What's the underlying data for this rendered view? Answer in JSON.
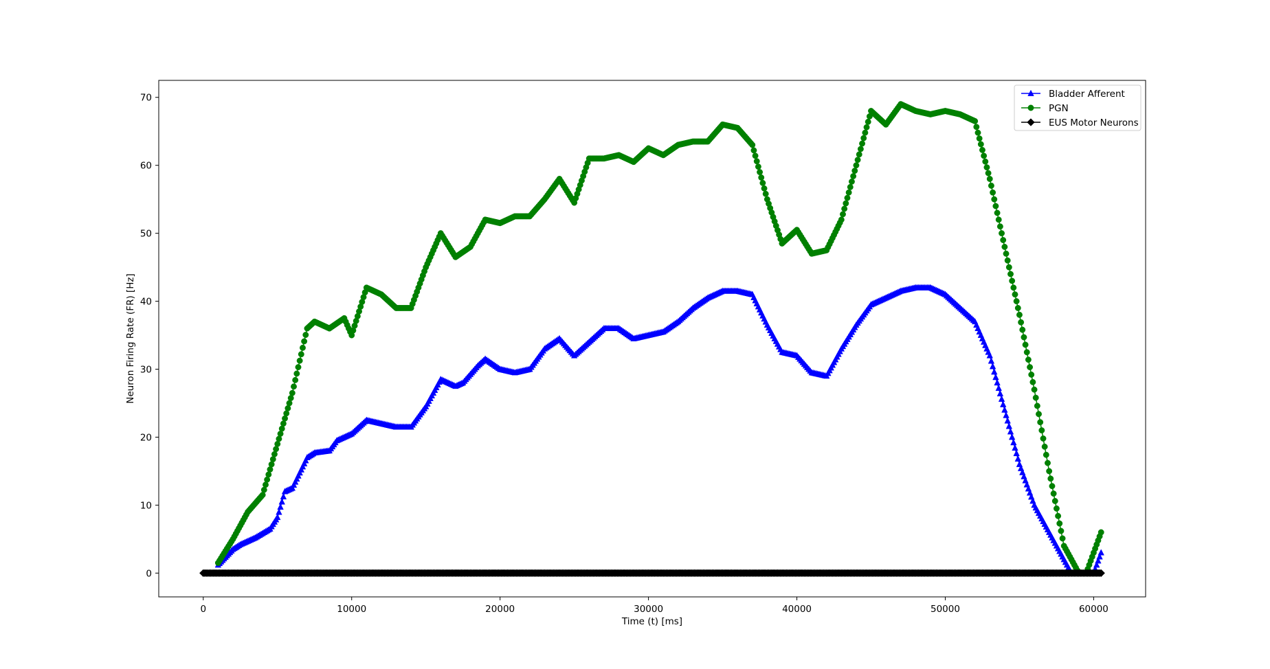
{
  "chart_data": {
    "type": "line",
    "xlabel": "Time (t) [ms]",
    "ylabel": "Neuron Firing Rate (FR) [Hz]",
    "xlim": [
      -3000,
      63500
    ],
    "ylim": [
      -3.5,
      72.5
    ],
    "xticks": [
      0,
      10000,
      20000,
      30000,
      40000,
      50000,
      60000
    ],
    "yticks": [
      0,
      10,
      20,
      30,
      40,
      50,
      60,
      70
    ],
    "x_tick_labels": [
      "0",
      "10000",
      "20000",
      "30000",
      "40000",
      "50000",
      "60000"
    ],
    "y_tick_labels": [
      "0",
      "10",
      "20",
      "30",
      "40",
      "50",
      "60",
      "70"
    ],
    "grid": false,
    "legend_position": "top-right",
    "marker_spacing_ms": 100,
    "series": [
      {
        "name": "Bladder Afferent",
        "color": "#0000ff",
        "marker": "triangle",
        "x_start": 1000,
        "x_end": 60500,
        "points": [
          [
            1000,
            1.2
          ],
          [
            2000,
            3.5
          ],
          [
            2500,
            4.2
          ],
          [
            3500,
            5.2
          ],
          [
            4500,
            6.5
          ],
          [
            5000,
            8.2
          ],
          [
            5500,
            12.0
          ],
          [
            6000,
            12.5
          ],
          [
            7000,
            17.0
          ],
          [
            7500,
            17.7
          ],
          [
            8500,
            18.0
          ],
          [
            9000,
            19.5
          ],
          [
            10000,
            20.5
          ],
          [
            11000,
            22.5
          ],
          [
            12000,
            22.0
          ],
          [
            13000,
            21.5
          ],
          [
            14000,
            21.5
          ],
          [
            15000,
            24.5
          ],
          [
            16000,
            28.5
          ],
          [
            17000,
            27.5
          ],
          [
            17500,
            28.0
          ],
          [
            18500,
            30.5
          ],
          [
            19000,
            31.5
          ],
          [
            20000,
            30.0
          ],
          [
            21000,
            29.5
          ],
          [
            22000,
            30.0
          ],
          [
            23000,
            33.0
          ],
          [
            24000,
            34.5
          ],
          [
            25000,
            32.0
          ],
          [
            26000,
            34.0
          ],
          [
            27000,
            36.0
          ],
          [
            28000,
            36.0
          ],
          [
            29000,
            34.5
          ],
          [
            30000,
            35.0
          ],
          [
            31000,
            35.5
          ],
          [
            32000,
            37.0
          ],
          [
            33000,
            39.0
          ],
          [
            34000,
            40.5
          ],
          [
            35000,
            41.5
          ],
          [
            36000,
            41.5
          ],
          [
            37000,
            41.0
          ],
          [
            38000,
            36.5
          ],
          [
            39000,
            32.5
          ],
          [
            40000,
            32.0
          ],
          [
            41000,
            29.5
          ],
          [
            42000,
            29.0
          ],
          [
            43000,
            33.0
          ],
          [
            44000,
            36.5
          ],
          [
            45000,
            39.5
          ],
          [
            46000,
            40.5
          ],
          [
            47000,
            41.5
          ],
          [
            48000,
            42.0
          ],
          [
            49000,
            42.0
          ],
          [
            50000,
            41.0
          ],
          [
            51000,
            39.0
          ],
          [
            52000,
            37.0
          ],
          [
            53000,
            32.0
          ],
          [
            54000,
            24.0
          ],
          [
            55000,
            16.0
          ],
          [
            56000,
            10.0
          ],
          [
            57000,
            6.0
          ],
          [
            58000,
            2.0
          ],
          [
            58500,
            0.0
          ],
          [
            60000,
            0.0
          ],
          [
            60500,
            3.0
          ]
        ]
      },
      {
        "name": "PGN",
        "color": "#008000",
        "marker": "circle",
        "x_start": 1000,
        "x_end": 60500,
        "points": [
          [
            1000,
            1.5
          ],
          [
            2000,
            5.0
          ],
          [
            3000,
            9.0
          ],
          [
            4000,
            11.5
          ],
          [
            5000,
            19.0
          ],
          [
            6000,
            26.5
          ],
          [
            7000,
            36.0
          ],
          [
            7500,
            37.0
          ],
          [
            8500,
            36.0
          ],
          [
            9500,
            37.5
          ],
          [
            10000,
            35.0
          ],
          [
            11000,
            42.0
          ],
          [
            12000,
            41.0
          ],
          [
            13000,
            39.0
          ],
          [
            14000,
            39.0
          ],
          [
            15000,
            45.0
          ],
          [
            16000,
            50.0
          ],
          [
            17000,
            46.5
          ],
          [
            18000,
            48.0
          ],
          [
            19000,
            52.0
          ],
          [
            20000,
            51.5
          ],
          [
            21000,
            52.5
          ],
          [
            22000,
            52.5
          ],
          [
            23000,
            55.0
          ],
          [
            24000,
            58.0
          ],
          [
            25000,
            54.5
          ],
          [
            26000,
            61.0
          ],
          [
            27000,
            61.0
          ],
          [
            28000,
            61.5
          ],
          [
            29000,
            60.5
          ],
          [
            30000,
            62.5
          ],
          [
            31000,
            61.5
          ],
          [
            32000,
            63.0
          ],
          [
            33000,
            63.5
          ],
          [
            34000,
            63.5
          ],
          [
            35000,
            66.0
          ],
          [
            36000,
            65.5
          ],
          [
            37000,
            63.0
          ],
          [
            38000,
            55.0
          ],
          [
            39000,
            48.5
          ],
          [
            40000,
            50.5
          ],
          [
            41000,
            47.0
          ],
          [
            42000,
            47.5
          ],
          [
            43000,
            52.0
          ],
          [
            44000,
            60.0
          ],
          [
            45000,
            68.0
          ],
          [
            46000,
            66.0
          ],
          [
            47000,
            69.0
          ],
          [
            48000,
            68.0
          ],
          [
            49000,
            67.5
          ],
          [
            50000,
            68.0
          ],
          [
            51000,
            67.5
          ],
          [
            52000,
            66.5
          ],
          [
            53000,
            58.0
          ],
          [
            54000,
            48.0
          ],
          [
            55000,
            38.0
          ],
          [
            56000,
            27.0
          ],
          [
            57000,
            15.0
          ],
          [
            58000,
            4.0
          ],
          [
            59000,
            0.0
          ],
          [
            59500,
            0.0
          ],
          [
            60000,
            3.0
          ],
          [
            60500,
            6.0
          ]
        ]
      },
      {
        "name": "EUS Motor Neurons",
        "color": "#000000",
        "marker": "diamond",
        "x_start": 0,
        "x_end": 60500,
        "points": [
          [
            0,
            0.0
          ],
          [
            60500,
            0.0
          ]
        ]
      }
    ]
  }
}
